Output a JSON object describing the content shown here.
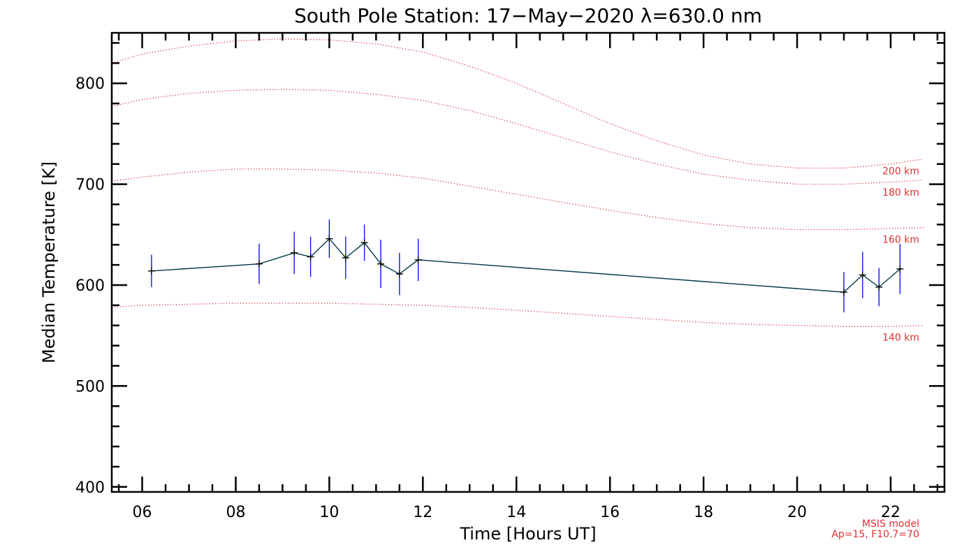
{
  "chart_data": {
    "type": "line",
    "title": "South Pole Station: 17−May−2020 λ=630.0 nm",
    "xlabel": "Time [Hours UT]",
    "ylabel": "Median Temperature [K]",
    "xlim": [
      5.35,
      23.15
    ],
    "ylim": [
      395,
      850
    ],
    "xticks": [
      6,
      8,
      10,
      12,
      14,
      16,
      18,
      20,
      22
    ],
    "xtick_labels": [
      "06",
      "08",
      "10",
      "12",
      "14",
      "16",
      "18",
      "20",
      "22"
    ],
    "yticks": [
      400,
      500,
      600,
      700,
      800
    ],
    "ytick_labels": [
      "400",
      "500",
      "600",
      "700",
      "800"
    ],
    "series": [
      {
        "style": "solid",
        "line_color": "#003848",
        "marker": "+",
        "errorbar_color": "#0000ff",
        "x": [
          6.2,
          8.5,
          9.25,
          9.6,
          10.0,
          10.35,
          10.75,
          11.1,
          11.5,
          11.9,
          21.0,
          21.4,
          21.75,
          22.2
        ],
        "y": [
          614,
          621,
          632,
          628,
          646,
          627,
          642,
          621,
          611,
          625,
          593,
          610,
          598,
          616
        ],
        "yerr": [
          16,
          20,
          21,
          20,
          19,
          21,
          18,
          24,
          21,
          21,
          20,
          23,
          19,
          25
        ]
      }
    ],
    "model_curves": [
      {
        "label": "200 km",
        "color": "#e03030",
        "style": "dotted",
        "x": [
          5.35,
          6,
          7,
          8,
          9,
          10,
          11,
          12,
          13,
          14,
          15,
          16,
          17,
          18,
          19,
          20,
          21,
          22,
          22.7
        ],
        "y": [
          820,
          829,
          837,
          842,
          844,
          843,
          839,
          831,
          817,
          800,
          780,
          760,
          743,
          729,
          720,
          716,
          716,
          720,
          725
        ]
      },
      {
        "label": "180 km",
        "color": "#e03030",
        "style": "dotted",
        "x": [
          5.35,
          6,
          7,
          8,
          9,
          10,
          11,
          12,
          13,
          14,
          15,
          16,
          17,
          18,
          19,
          20,
          21,
          22,
          22.7
        ],
        "y": [
          777,
          784,
          790,
          793,
          794,
          793,
          789,
          783,
          773,
          760,
          746,
          732,
          720,
          710,
          704,
          700,
          700,
          702,
          704
        ]
      },
      {
        "label": "160 km",
        "color": "#e03030",
        "style": "dotted",
        "x": [
          5.35,
          6,
          7,
          8,
          9,
          10,
          11,
          12,
          13,
          14,
          15,
          16,
          17,
          18,
          19,
          20,
          21,
          22,
          22.7
        ],
        "y": [
          703,
          707,
          712,
          715,
          715,
          714,
          711,
          706,
          698,
          690,
          682,
          674,
          667,
          661,
          657,
          655,
          655,
          656,
          657
        ]
      },
      {
        "label": "140 km",
        "color": "#e03030",
        "style": "dotted",
        "x": [
          5.35,
          6,
          7,
          8,
          9,
          10,
          11,
          12,
          13,
          14,
          15,
          16,
          17,
          18,
          19,
          20,
          21,
          22,
          22.7
        ],
        "y": [
          578,
          580,
          581,
          582,
          582,
          582,
          581,
          580,
          578,
          575,
          572,
          569,
          566,
          563,
          561,
          560,
          559,
          559,
          560
        ]
      }
    ],
    "annotation": [
      "MSIS model",
      "Ap=15, F10.7=70"
    ],
    "grid": false,
    "legend": "none"
  }
}
